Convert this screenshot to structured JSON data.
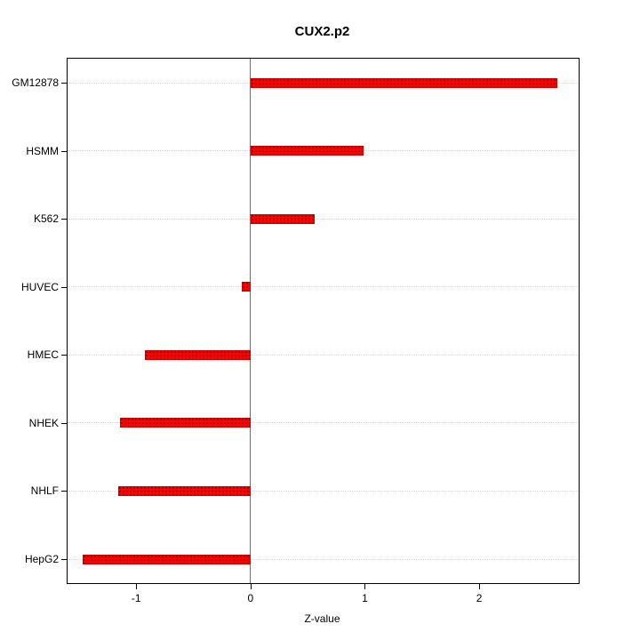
{
  "title": "CUX2.p2",
  "chart_data": {
    "type": "bar",
    "orientation": "horizontal",
    "title": "CUX2.p2",
    "xlabel": "Z-value",
    "ylabel": "",
    "categories": [
      "GM12878",
      "HSMM",
      "K562",
      "HUVEC",
      "HMEC",
      "NHEK",
      "NHLF",
      "HepG2"
    ],
    "values": [
      2.68,
      0.99,
      0.56,
      -0.08,
      -0.92,
      -1.14,
      -1.16,
      -1.47
    ],
    "xlim": [
      -1.6,
      2.87
    ],
    "xticks": [
      -1,
      0,
      1,
      2
    ],
    "grid": "dotted-horizontal",
    "legend": "none",
    "bar_color": "#ff0000",
    "bar_dot_color": "#8b0000",
    "zero_line_color": "#00bb00",
    "frame_color": "#000000",
    "background_color": "#ffffff"
  }
}
